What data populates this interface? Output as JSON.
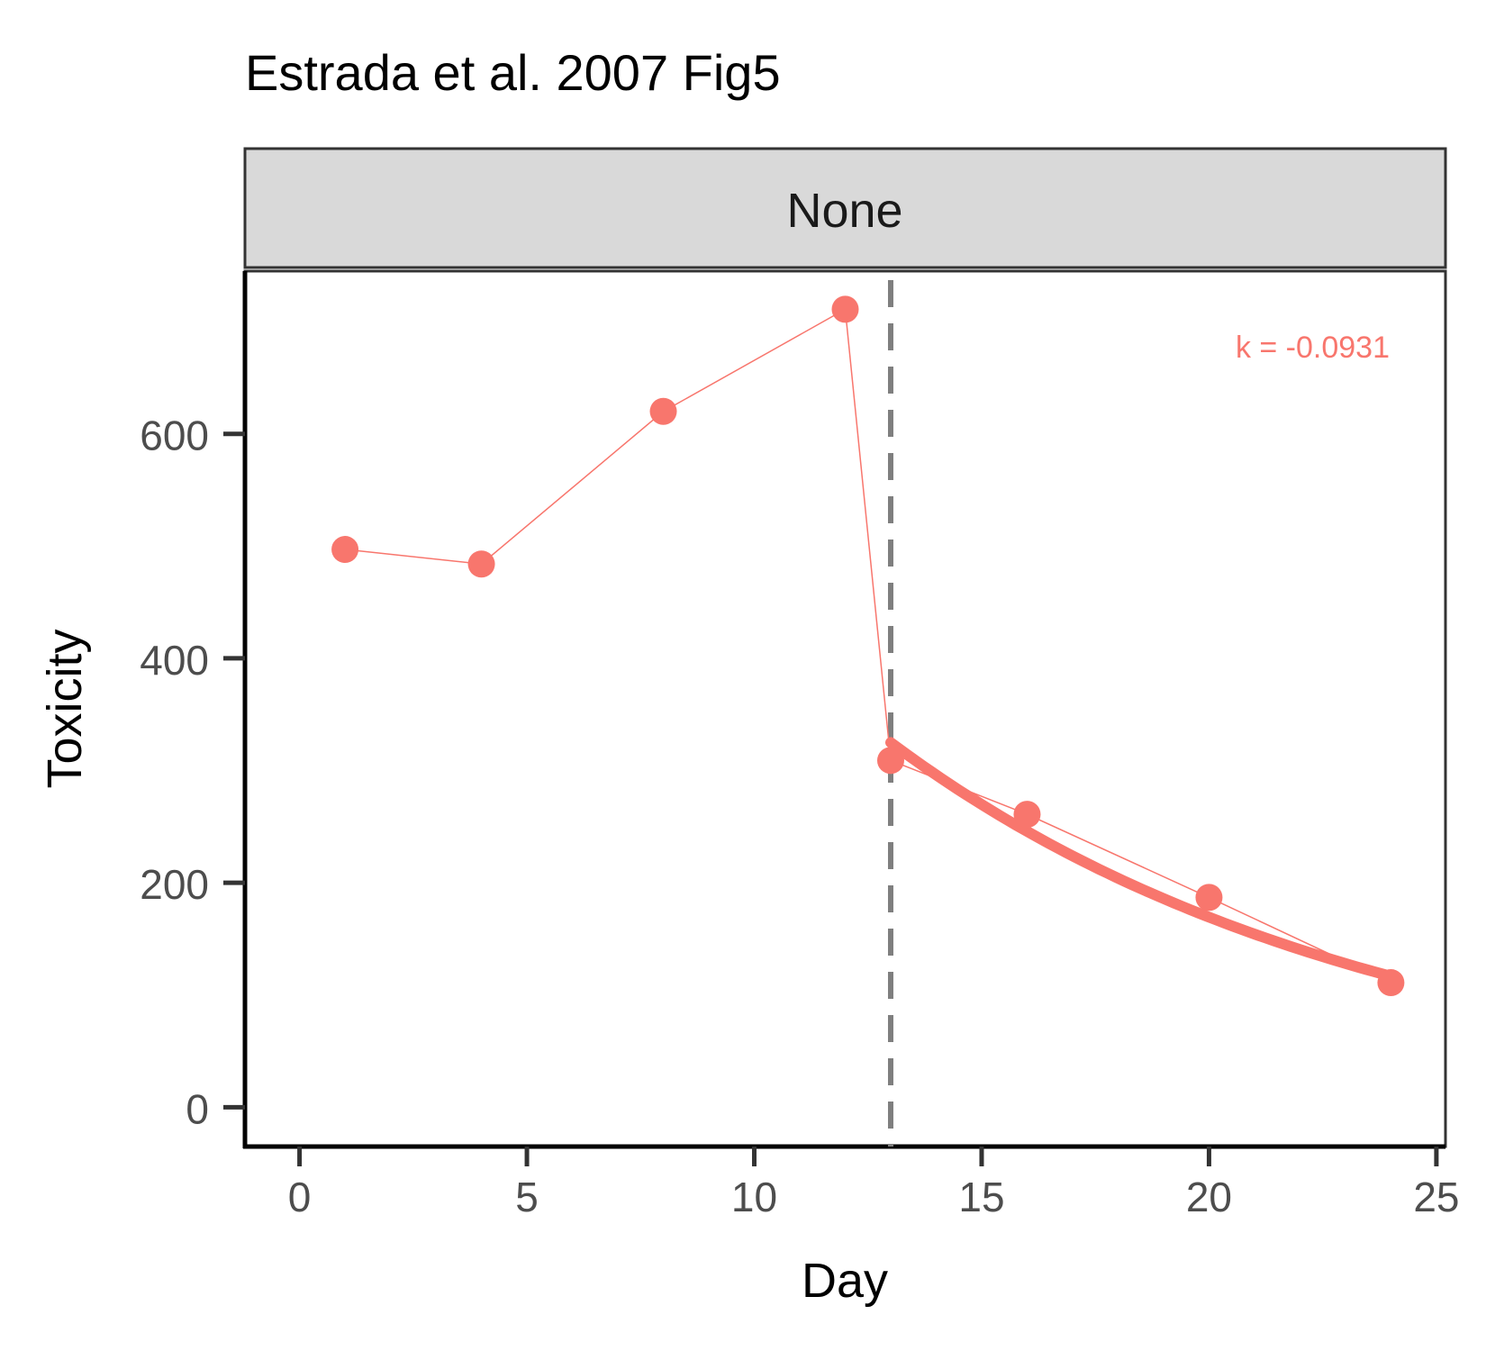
{
  "chart_data": {
    "type": "line",
    "title": "Estrada et al. 2007 Fig5",
    "facet_label": "None",
    "xlabel": "Day",
    "ylabel": "Toxicity",
    "xlim": [
      -1.2,
      25.2
    ],
    "ylim": [
      -35,
      745
    ],
    "x_ticks": [
      0,
      5,
      10,
      15,
      20,
      25
    ],
    "y_ticks": [
      0,
      200,
      400,
      600
    ],
    "grid": false,
    "series": [
      {
        "color": "#F8766D",
        "x": [
          1,
          4,
          8,
          12,
          13,
          16,
          20,
          24
        ],
        "y": [
          497,
          484,
          620,
          711,
          309,
          261,
          187,
          111
        ]
      }
    ],
    "fit": {
      "color": "#F8766D",
      "x_start": 13,
      "x_end": 24,
      "y_start": 325,
      "k": -0.0931
    },
    "vline": {
      "x": 13,
      "color": "#7f7f7f",
      "style": "dashed"
    },
    "annotation": {
      "text": "k = -0.0931",
      "color": "#F8766D",
      "position": "top-right"
    }
  }
}
